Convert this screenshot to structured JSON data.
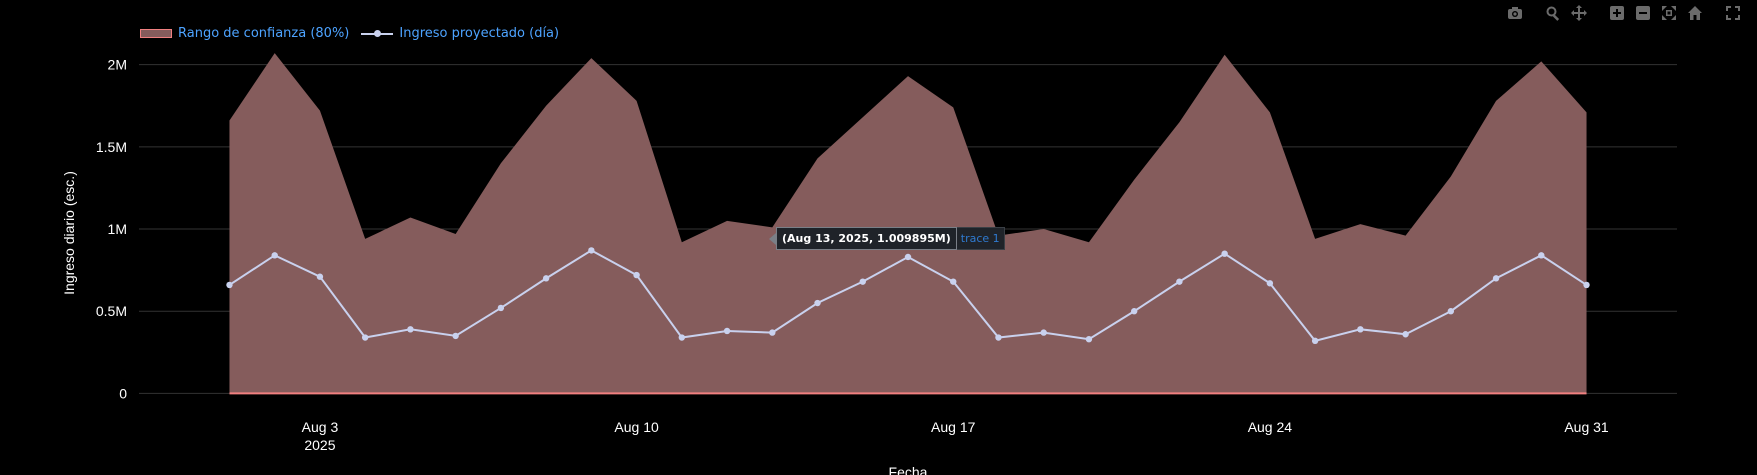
{
  "toolbar": {
    "icons": [
      "camera-icon",
      "zoom-icon",
      "pan-icon",
      "zoom-in-icon",
      "zoom-out-icon",
      "autoscale-icon",
      "home-icon",
      "fullscreen-icon"
    ]
  },
  "legend": {
    "area_label": "Rango de confianza (80%)",
    "line_label": "Ingreso proyectado (día)"
  },
  "hover": {
    "text": "(Aug 13, 2025, 1.009895M)",
    "trace": "trace 1"
  },
  "colors": {
    "background": "#000000",
    "band_fill": "#855c5c",
    "band_edge": "#f08080",
    "line": "#c9d1ee",
    "grid": "#333333",
    "axis_text": "#ffffff",
    "legend_text": "#4da3ff"
  },
  "chart_data": {
    "type": "area",
    "xlabel": "Fecha",
    "ylabel": "Ingreso diario (esc.)",
    "xlim": [
      "2025-07-30",
      "2025-09-02"
    ],
    "ylim": [
      -0.04,
      2.15
    ],
    "x_ticks": [
      {
        "date": "2025-08-03",
        "label": "Aug 3",
        "sublabel": "2025"
      },
      {
        "date": "2025-08-10",
        "label": "Aug 10",
        "sublabel": ""
      },
      {
        "date": "2025-08-17",
        "label": "Aug 17",
        "sublabel": ""
      },
      {
        "date": "2025-08-24",
        "label": "Aug 24",
        "sublabel": ""
      },
      {
        "date": "2025-08-31",
        "label": "Aug 31",
        "sublabel": ""
      }
    ],
    "y_ticks": [
      {
        "value": 0,
        "label": "0"
      },
      {
        "value": 0.5,
        "label": "0.5M"
      },
      {
        "value": 1,
        "label": "1M"
      },
      {
        "value": 1.5,
        "label": "1.5M"
      },
      {
        "value": 2,
        "label": "2M"
      }
    ],
    "legend_position": "top-left",
    "grid": true,
    "x": [
      "2025-08-01",
      "2025-08-02",
      "2025-08-03",
      "2025-08-04",
      "2025-08-05",
      "2025-08-06",
      "2025-08-07",
      "2025-08-08",
      "2025-08-09",
      "2025-08-10",
      "2025-08-11",
      "2025-08-12",
      "2025-08-13",
      "2025-08-14",
      "2025-08-15",
      "2025-08-16",
      "2025-08-17",
      "2025-08-18",
      "2025-08-19",
      "2025-08-20",
      "2025-08-21",
      "2025-08-22",
      "2025-08-23",
      "2025-08-24",
      "2025-08-25",
      "2025-08-26",
      "2025-08-27",
      "2025-08-28",
      "2025-08-29",
      "2025-08-30",
      "2025-08-31"
    ],
    "series": [
      {
        "name": "Rango de confianza (80%)",
        "kind": "band",
        "lower": [
          0,
          0,
          0,
          0,
          0,
          0,
          0,
          0,
          0,
          0,
          0,
          0,
          0,
          0,
          0,
          0,
          0,
          0,
          0,
          0,
          0,
          0,
          0,
          0,
          0,
          0,
          0,
          0,
          0,
          0,
          0
        ],
        "upper": [
          1.66,
          2.07,
          1.72,
          0.94,
          1.07,
          0.97,
          1.4,
          1.75,
          2.04,
          1.78,
          0.92,
          1.05,
          1.01,
          1.43,
          1.68,
          1.93,
          1.74,
          0.96,
          1.0,
          0.92,
          1.3,
          1.65,
          2.06,
          1.71,
          0.94,
          1.03,
          0.96,
          1.32,
          1.78,
          2.02,
          1.71
        ]
      },
      {
        "name": "Ingreso proyectado (día)",
        "kind": "line",
        "values": [
          0.66,
          0.84,
          0.71,
          0.34,
          0.39,
          0.35,
          0.52,
          0.7,
          0.87,
          0.72,
          0.34,
          0.38,
          0.37,
          0.55,
          0.68,
          0.83,
          0.68,
          0.34,
          0.37,
          0.33,
          0.5,
          0.68,
          0.85,
          0.67,
          0.32,
          0.39,
          0.36,
          0.5,
          0.7,
          0.84,
          0.66
        ]
      }
    ],
    "hover_point": {
      "x": "2025-08-13",
      "y": 1.009895
    }
  }
}
